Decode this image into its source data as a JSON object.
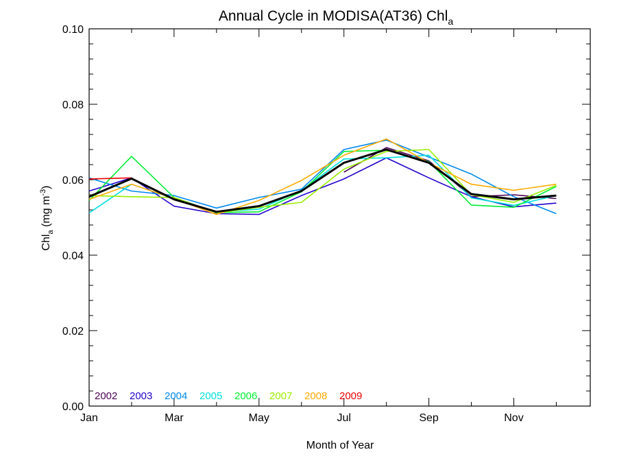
{
  "chart_data": {
    "type": "line",
    "title": "Annual Cycle in MODISA(AT36) Chl",
    "title_subscript": "a",
    "xlabel": "Month of Year",
    "ylabel": "Chl",
    "ylabel_subscript": "a",
    "ylabel_units": " (mg m",
    "ylabel_units_sup": "-3",
    "ylabel_units_close": ")",
    "xlim": [
      1,
      12.8
    ],
    "ylim": [
      0.0,
      0.1
    ],
    "xticks": [
      {
        "value": 1,
        "label": "Jan"
      },
      {
        "value": 3,
        "label": "Mar"
      },
      {
        "value": 5,
        "label": "May"
      },
      {
        "value": 7,
        "label": "Jul"
      },
      {
        "value": 9,
        "label": "Sep"
      },
      {
        "value": 11,
        "label": "Nov"
      }
    ],
    "yticks": [
      "0.00",
      "0.02",
      "0.04",
      "0.06",
      "0.08",
      "0.10"
    ],
    "grid": false,
    "legend_position": "bottom-left",
    "x": [
      1,
      2,
      3,
      4,
      5,
      6,
      7,
      8,
      9,
      10,
      11,
      12
    ],
    "series": [
      {
        "name": "2002",
        "color": "#4b0055",
        "values": [
          null,
          null,
          null,
          null,
          null,
          null,
          0.062,
          0.0685,
          0.065,
          0.0555,
          0.056,
          0.055
        ]
      },
      {
        "name": "2003",
        "color": "#2200cc",
        "values": [
          0.057,
          0.0605,
          0.053,
          0.051,
          0.0508,
          0.0558,
          0.0602,
          0.0658,
          0.0605,
          0.0555,
          0.0528,
          0.0538
        ]
      },
      {
        "name": "2004",
        "color": "#0088ee",
        "values": [
          0.0605,
          0.057,
          0.0558,
          0.0525,
          0.0553,
          0.0575,
          0.068,
          0.0705,
          0.066,
          0.0615,
          0.0555,
          0.051
        ]
      },
      {
        "name": "2005",
        "color": "#00e0dd",
        "values": [
          0.0512,
          0.0588,
          0.055,
          0.0515,
          0.0522,
          0.0572,
          0.0655,
          0.0658,
          0.0665,
          0.0552,
          0.0532,
          0.0558
        ]
      },
      {
        "name": "2006",
        "color": "#00ee33",
        "values": [
          0.0545,
          0.0662,
          0.0553,
          0.0513,
          0.0515,
          0.0568,
          0.0675,
          0.0678,
          0.0648,
          0.0533,
          0.0527,
          0.0582
        ]
      },
      {
        "name": "2007",
        "color": "#99ee00",
        "values": [
          0.0558,
          0.0555,
          0.0553,
          0.0512,
          0.0527,
          0.054,
          0.0628,
          0.0675,
          0.068,
          0.056,
          0.054,
          0.0585
        ]
      },
      {
        "name": "2008",
        "color": "#ffaa00",
        "values": [
          0.0548,
          0.0588,
          0.055,
          0.0508,
          0.0545,
          0.0598,
          0.0665,
          0.0708,
          0.0645,
          0.0588,
          0.0572,
          0.0588
        ]
      },
      {
        "name": "2009",
        "color": "#ee0000",
        "values": [
          0.0602,
          0.0605,
          null,
          null,
          null,
          null,
          null,
          null,
          null,
          null,
          null,
          null
        ]
      },
      {
        "name": "",
        "color": "#000000",
        "values": [
          0.0555,
          0.0603,
          0.0548,
          0.0515,
          0.053,
          0.057,
          0.0645,
          0.068,
          0.0645,
          0.0562,
          0.0548,
          0.0558
        ]
      }
    ]
  }
}
